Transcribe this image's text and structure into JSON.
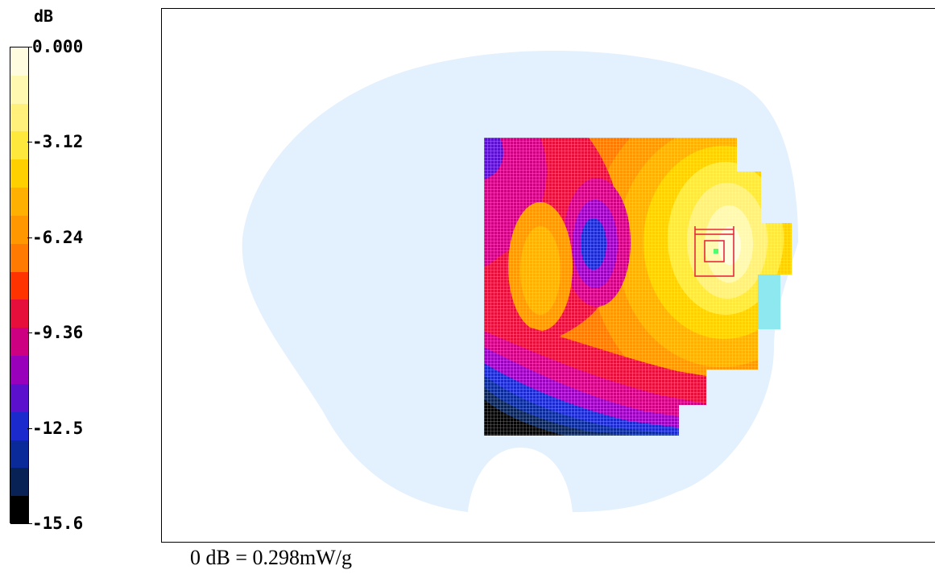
{
  "chart_data": {
    "type": "heatmap",
    "title": "",
    "colorbar": {
      "unit_label": "dB",
      "range": [
        -15.6,
        0.0
      ],
      "tick_labels": [
        "0.000",
        "-3.12",
        "-6.24",
        "-9.36",
        "-12.5",
        "-15.6"
      ],
      "tick_values": [
        0.0,
        -3.12,
        -6.24,
        -9.36,
        -12.5,
        -15.6
      ],
      "colors": [
        "#fffce0",
        "#fff8b0",
        "#fff07c",
        "#ffe83c",
        "#ffd000",
        "#ffb000",
        "#ff9800",
        "#ff7a00",
        "#ff3300",
        "#e60f3c",
        "#cc0080",
        "#9900bb",
        "#5a10cc",
        "#1a2acc",
        "#0a2a99",
        "#082255",
        "#000000"
      ]
    },
    "reference": "0 dB = 0.298mW/g"
  }
}
